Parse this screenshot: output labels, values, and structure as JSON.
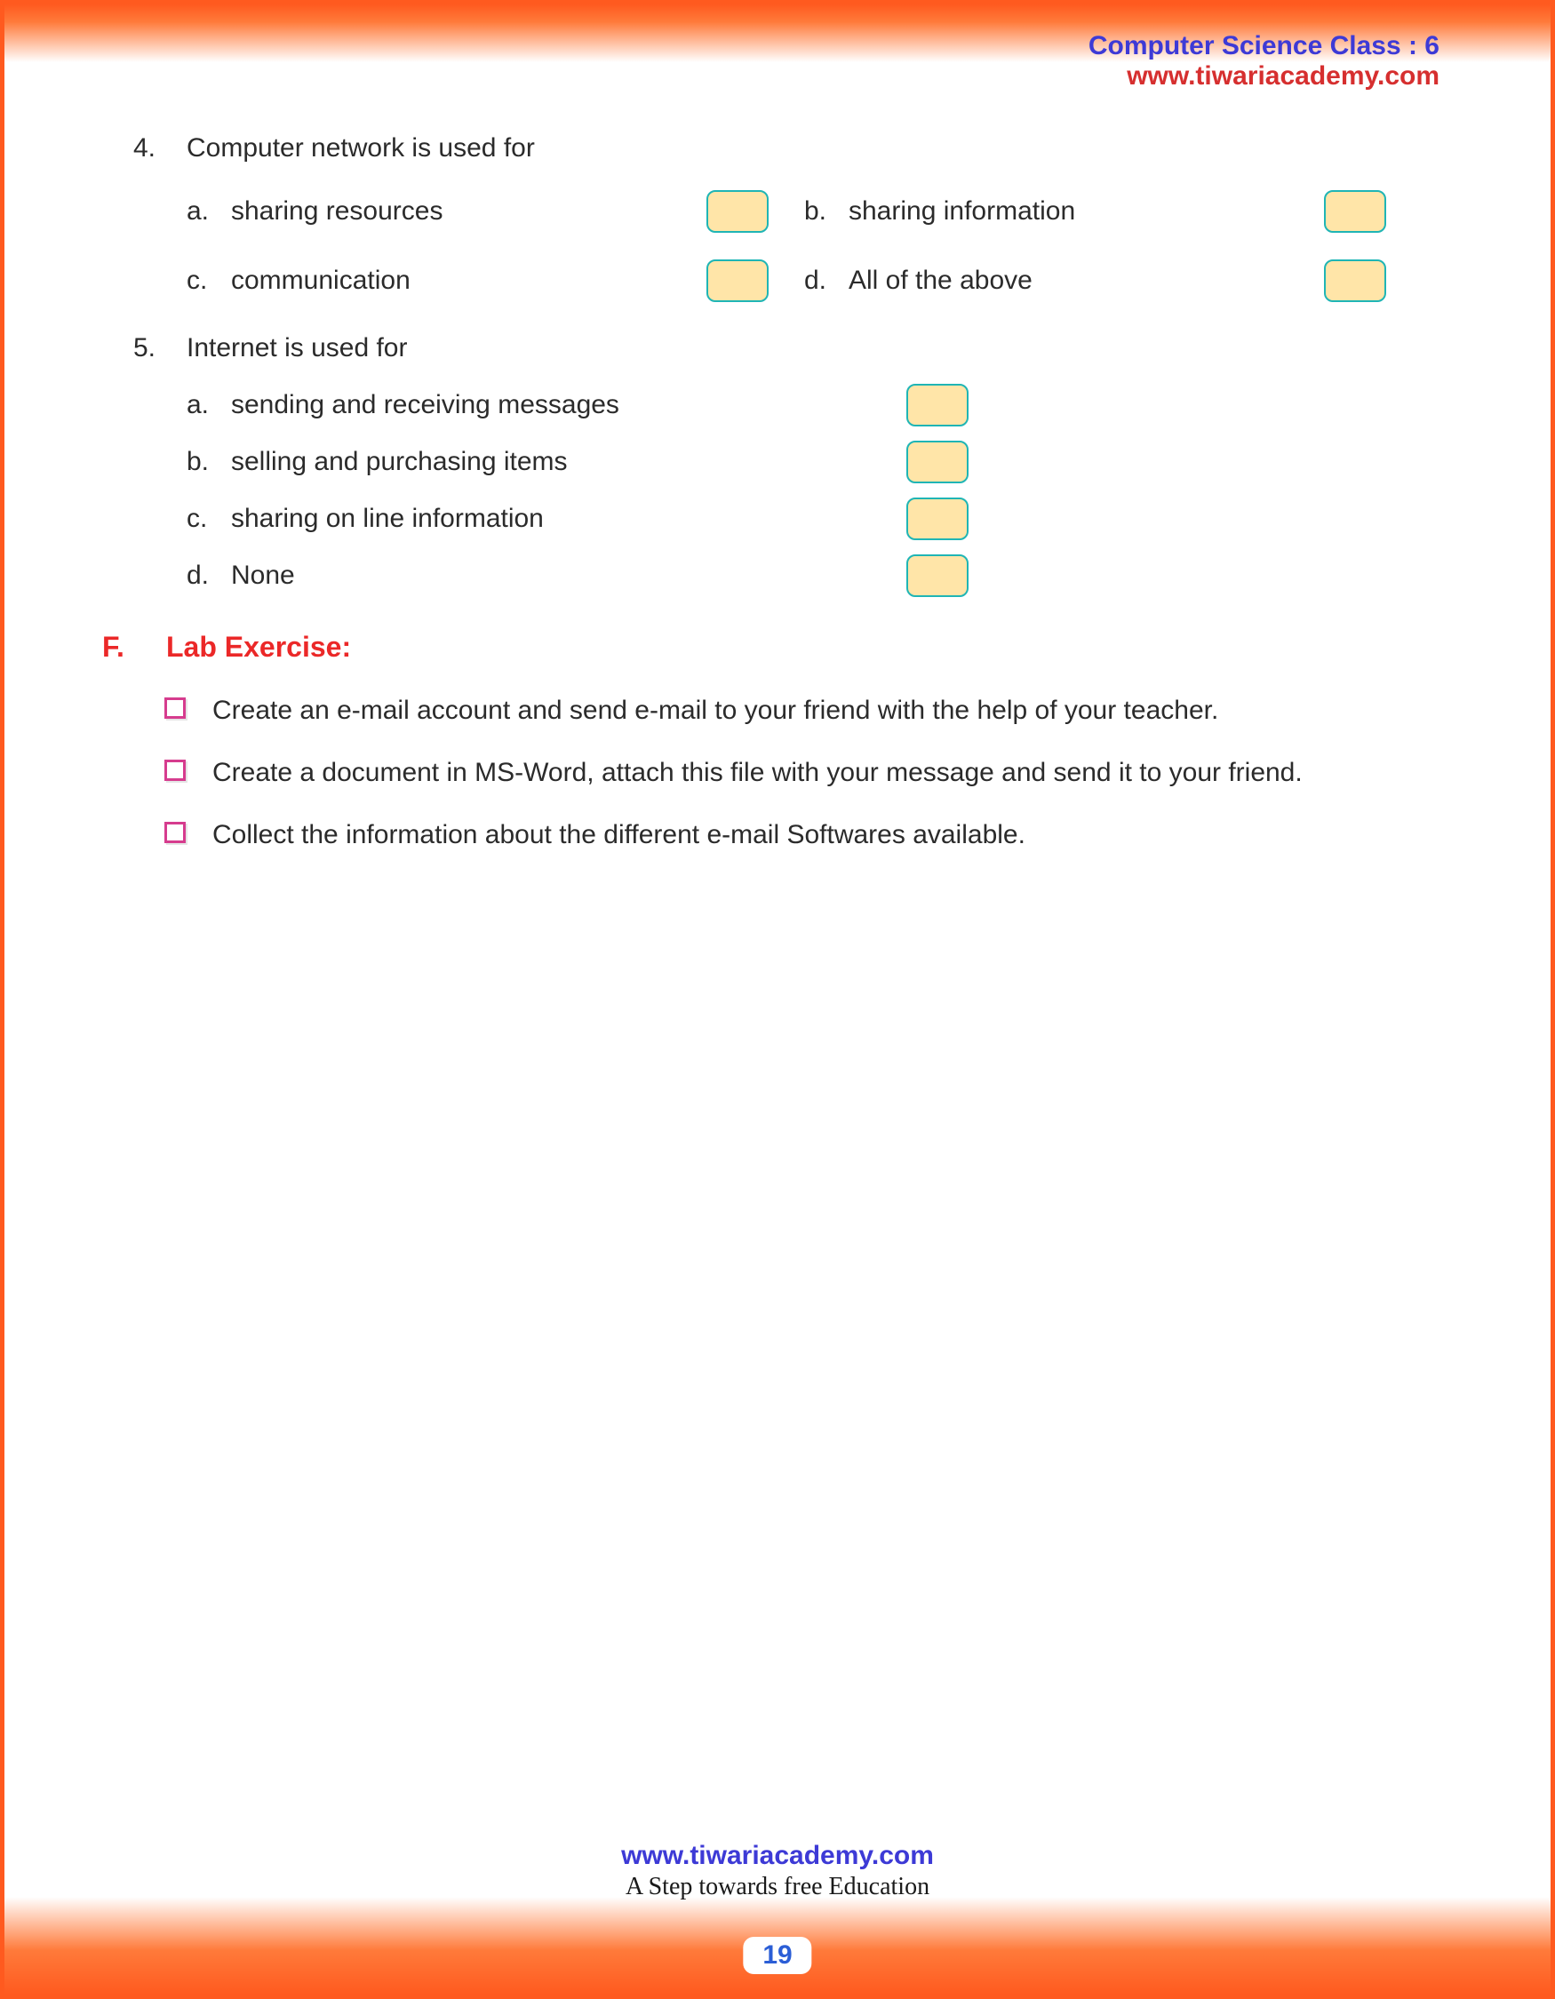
{
  "header": {
    "line1": "Computer Science Class : 6",
    "line2": "www.tiwariacademy.com"
  },
  "colors": {
    "border": "#ff5a1f",
    "header_blue": "#3d3ad6",
    "header_red": "#d62f2f",
    "section_red": "#eb2828",
    "bullet_border": "#d63c8e",
    "box_fill": "#ffe5a8",
    "box_border": "#1fb5b5",
    "text": "#2b2b2b",
    "page_num": "#2b5ed6"
  },
  "questions": {
    "q4": {
      "number": "4.",
      "stem": "Computer network is used for",
      "options": {
        "a": {
          "letter": "a.",
          "text": "sharing resources"
        },
        "b": {
          "letter": "b.",
          "text": "sharing information"
        },
        "c": {
          "letter": "c.",
          "text": "communication"
        },
        "d": {
          "letter": "d.",
          "text": "All of the above"
        }
      }
    },
    "q5": {
      "number": "5.",
      "stem": "Internet is used for",
      "options": {
        "a": {
          "letter": "a.",
          "text": "sending and receiving messages"
        },
        "b": {
          "letter": "b.",
          "text": "selling and purchasing items"
        },
        "c": {
          "letter": "c.",
          "text": "sharing on line information"
        },
        "d": {
          "letter": "d.",
          "text": "None"
        }
      }
    }
  },
  "section": {
    "letter": "F.",
    "title": "Lab Exercise:",
    "items": {
      "i1": "Create an e-mail account and send e-mail to your friend with the help of your teacher.",
      "i2": "Create a document in MS-Word, attach this file with your message and send it to your friend.",
      "i3": "Collect the information about the different e-mail Softwares available."
    }
  },
  "footer": {
    "url": "www.tiwariacademy.com",
    "tagline": "A Step towards free Education",
    "page": "19"
  }
}
